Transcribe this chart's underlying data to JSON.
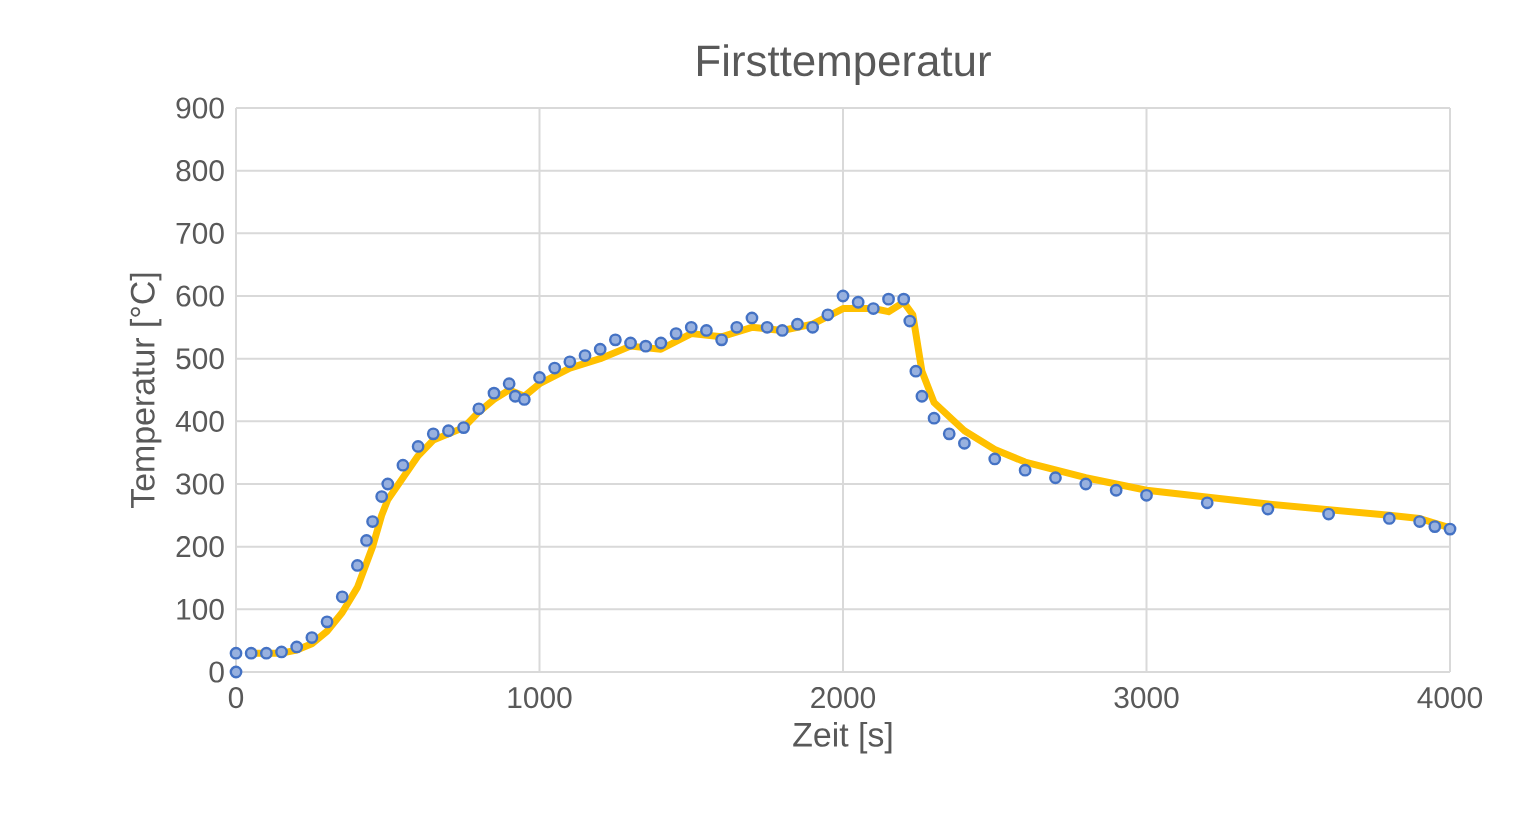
{
  "chart_data": {
    "type": "scatter",
    "title": "Firsttemperatur",
    "xlabel": "Zeit [s]",
    "ylabel": "Temperatur [°C]",
    "xlim": [
      0,
      4000
    ],
    "ylim": [
      0,
      900
    ],
    "xticks": [
      0,
      1000,
      2000,
      3000,
      4000
    ],
    "yticks": [
      0,
      100,
      200,
      300,
      400,
      500,
      600,
      700,
      800,
      900
    ],
    "grid": true,
    "series": [
      {
        "marker": "circle",
        "color": "#4472c4",
        "x": [
          0,
          0,
          50,
          100,
          150,
          200,
          250,
          300,
          350,
          400,
          430,
          450,
          480,
          500,
          550,
          600,
          650,
          700,
          750,
          800,
          850,
          900,
          920,
          950,
          1000,
          1050,
          1100,
          1150,
          1200,
          1250,
          1300,
          1350,
          1400,
          1450,
          1500,
          1550,
          1600,
          1650,
          1700,
          1750,
          1800,
          1850,
          1900,
          1950,
          2000,
          2050,
          2100,
          2150,
          2200,
          2220,
          2240,
          2260,
          2300,
          2350,
          2400,
          2500,
          2600,
          2700,
          2800,
          2900,
          3000,
          3200,
          3400,
          3600,
          3800,
          3900,
          3950,
          4000
        ],
        "values": [
          0,
          30,
          30,
          30,
          32,
          40,
          55,
          80,
          120,
          170,
          210,
          240,
          280,
          300,
          330,
          360,
          380,
          385,
          390,
          420,
          445,
          460,
          440,
          435,
          470,
          485,
          495,
          505,
          515,
          530,
          525,
          520,
          525,
          540,
          550,
          545,
          530,
          550,
          565,
          550,
          545,
          555,
          550,
          570,
          600,
          590,
          580,
          595,
          595,
          560,
          480,
          440,
          405,
          380,
          365,
          340,
          322,
          310,
          300,
          290,
          282,
          270,
          260,
          252,
          245,
          240,
          232,
          228
        ]
      },
      {
        "type": "line",
        "marker": "none",
        "line_style": "solid",
        "color": "#ffc000",
        "x": [
          50,
          150,
          200,
          250,
          300,
          350,
          400,
          450,
          480,
          500,
          550,
          600,
          650,
          700,
          750,
          800,
          850,
          900,
          950,
          1000,
          1100,
          1200,
          1300,
          1400,
          1500,
          1600,
          1700,
          1800,
          1900,
          2000,
          2100,
          2150,
          2200,
          2230,
          2260,
          2300,
          2400,
          2500,
          2600,
          2800,
          3000,
          3400,
          3800,
          3900,
          4000
        ],
        "values": [
          30,
          30,
          35,
          45,
          65,
          95,
          135,
          200,
          250,
          275,
          310,
          345,
          370,
          380,
          390,
          415,
          435,
          450,
          440,
          460,
          485,
          500,
          520,
          515,
          540,
          535,
          550,
          545,
          555,
          580,
          580,
          575,
          590,
          570,
          480,
          430,
          385,
          355,
          335,
          310,
          290,
          268,
          250,
          245,
          230
        ]
      }
    ]
  }
}
